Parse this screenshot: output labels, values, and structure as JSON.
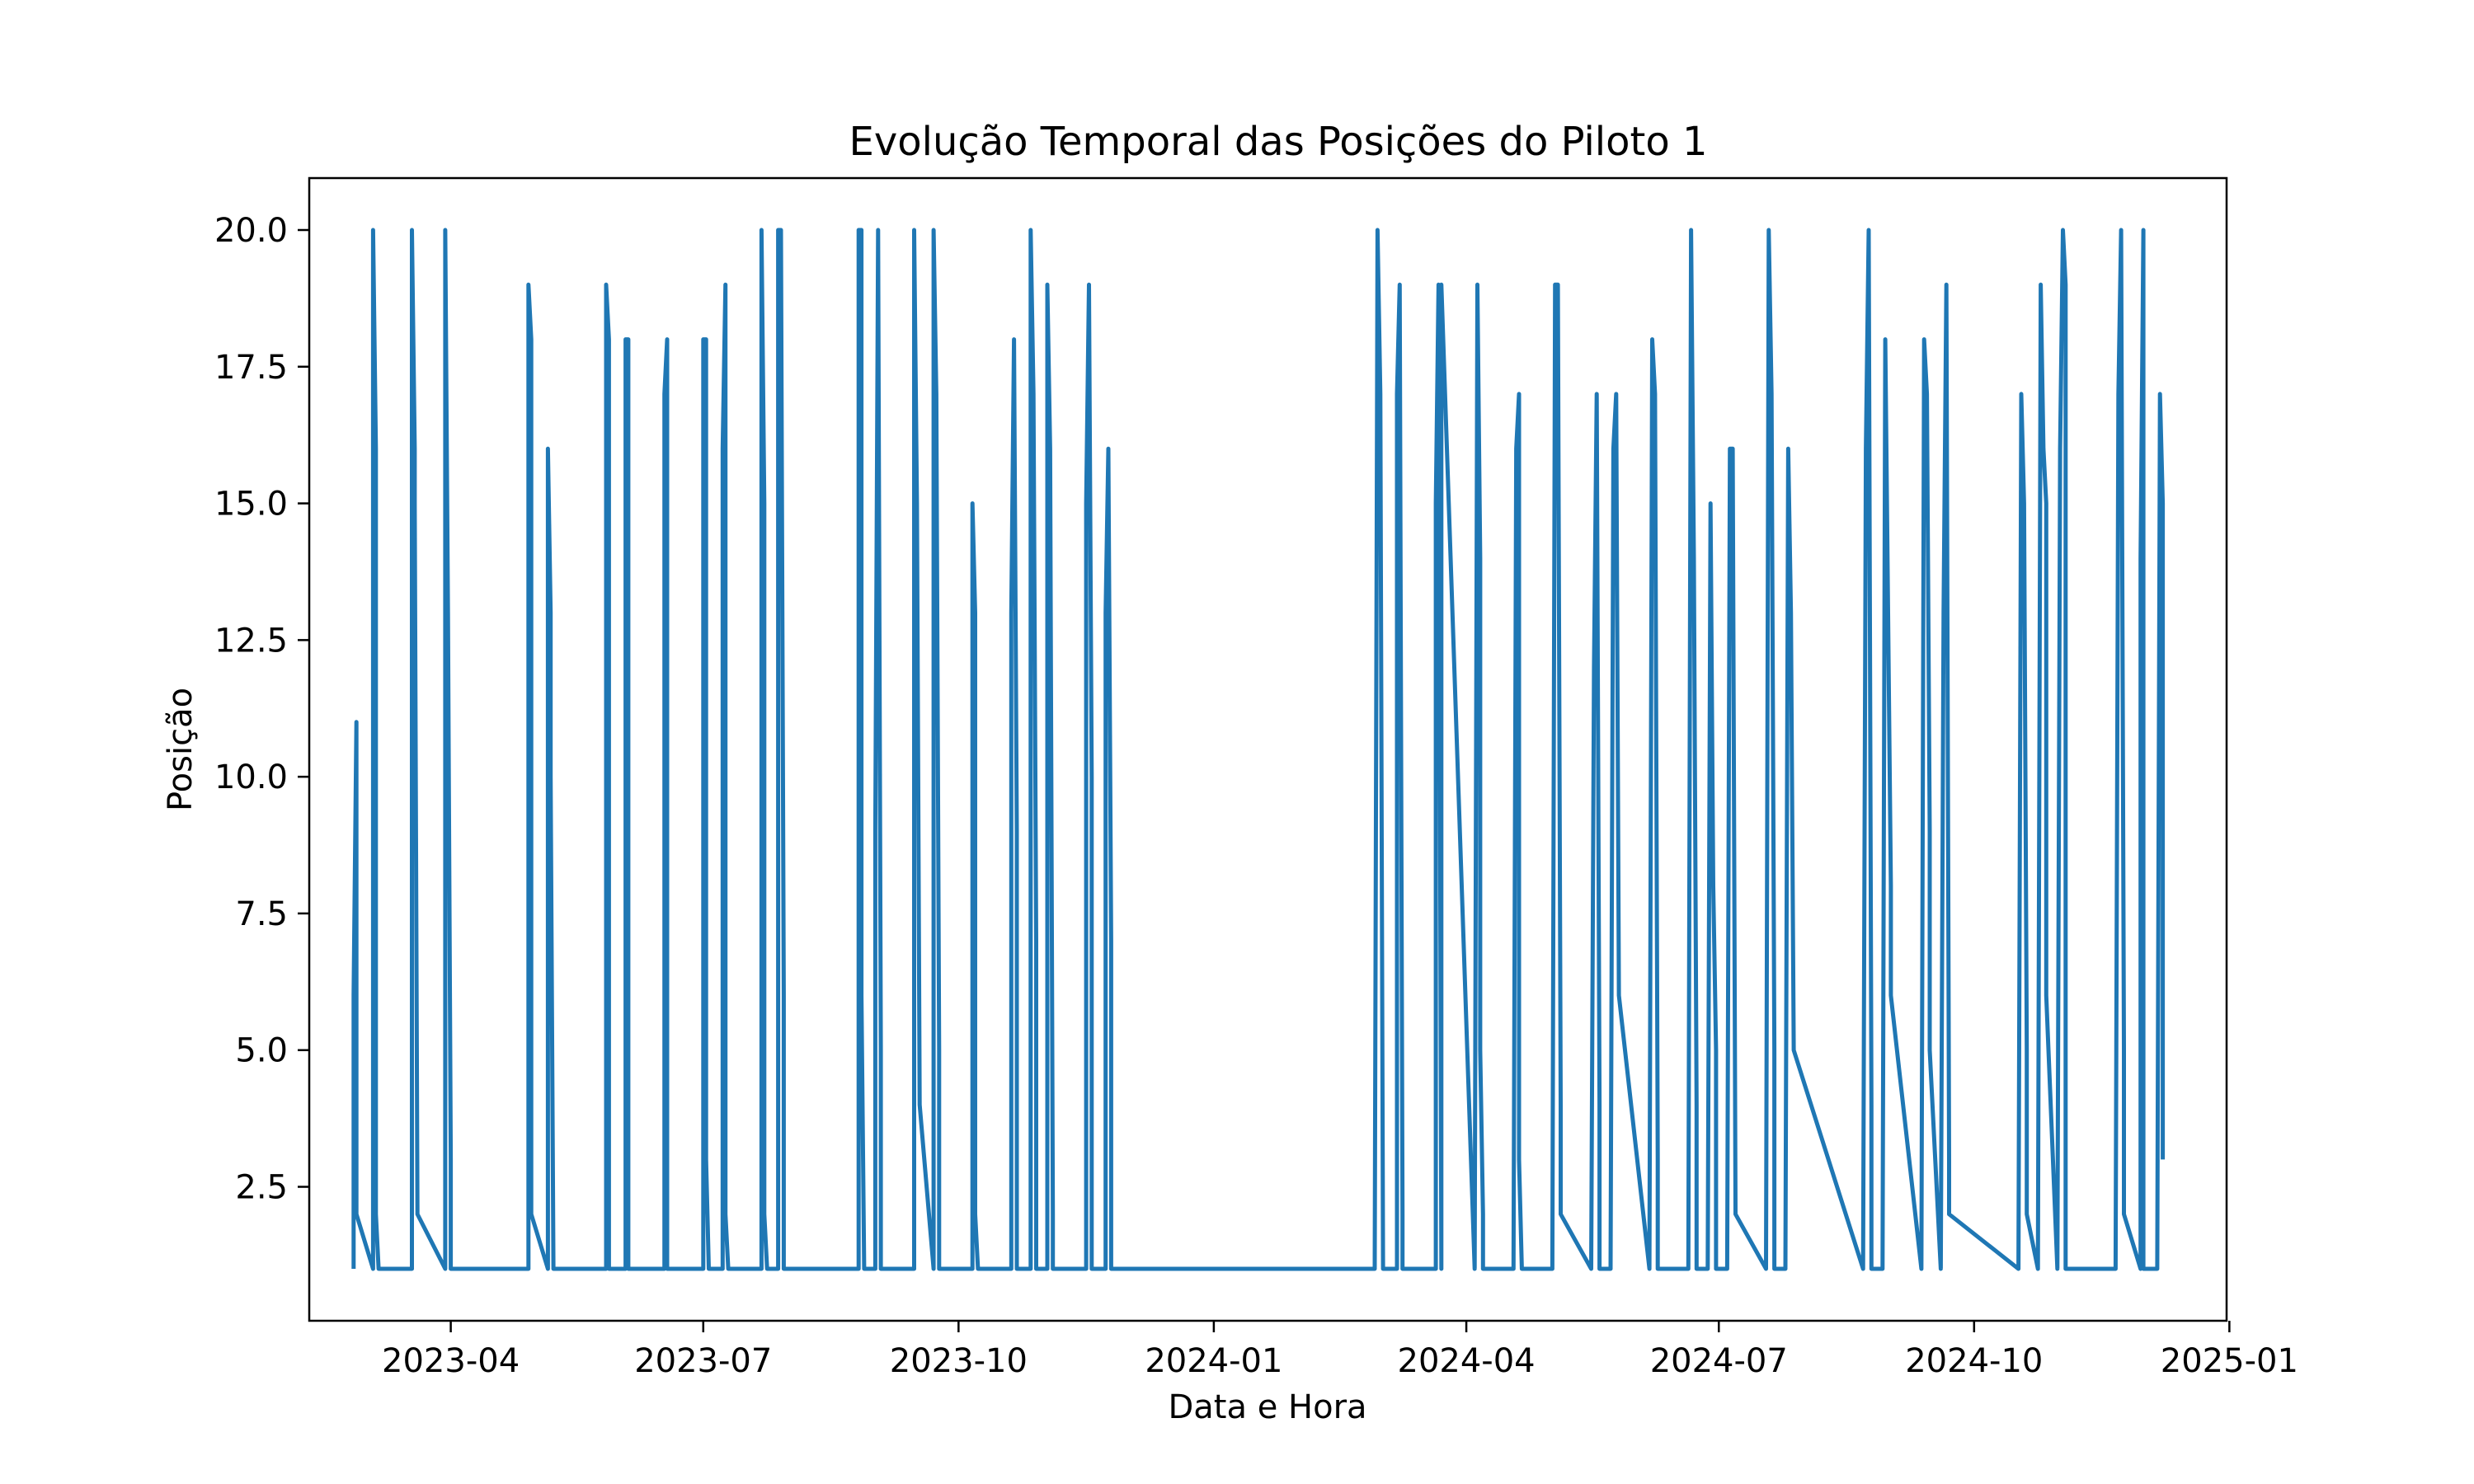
{
  "colors": {
    "line": "#1f77b4",
    "axes": "#000000",
    "background": "#ffffff"
  },
  "chart_data": {
    "type": "line",
    "title": "Evolução Temporal das Posições do Piloto 1",
    "xlabel": "Data e Hora",
    "ylabel": "Posição",
    "x_ticks": [
      "2023-04",
      "2023-07",
      "2023-10",
      "2024-01",
      "2024-04",
      "2024-07",
      "2024-10",
      "2025-01"
    ],
    "y_ticks": [
      "2.5",
      "5.0",
      "7.5",
      "10.0",
      "12.5",
      "15.0",
      "17.5",
      "20.0"
    ],
    "xlim": [
      "2023-02-09",
      "2024-12-31"
    ],
    "ylim": [
      0.05,
      20.95
    ],
    "grid": false,
    "legend": "none",
    "series": [
      {
        "points": [
          [
            "2023-02-25",
            1
          ],
          [
            "2023-02-25",
            6
          ],
          [
            "2023-02-26",
            11
          ],
          [
            "2023-02-26",
            2
          ],
          [
            "2023-03-04",
            1
          ],
          [
            "2023-03-04",
            20
          ],
          [
            "2023-03-05",
            16
          ],
          [
            "2023-03-05",
            2
          ],
          [
            "2023-03-06",
            1
          ],
          [
            "2023-03-18",
            1
          ],
          [
            "2023-03-18",
            20
          ],
          [
            "2023-03-19",
            16
          ],
          [
            "2023-03-19",
            15
          ],
          [
            "2023-03-20",
            2
          ],
          [
            "2023-03-30",
            1
          ],
          [
            "2023-03-30",
            20
          ],
          [
            "2023-03-31",
            13
          ],
          [
            "2023-04-01",
            3
          ],
          [
            "2023-04-01",
            1
          ],
          [
            "2023-04-29",
            1
          ],
          [
            "2023-04-29",
            19
          ],
          [
            "2023-04-30",
            18
          ],
          [
            "2023-04-30",
            7
          ],
          [
            "2023-04-30",
            2
          ],
          [
            "2023-05-06",
            1
          ],
          [
            "2023-05-06",
            16
          ],
          [
            "2023-05-07",
            13
          ],
          [
            "2023-05-07",
            10
          ],
          [
            "2023-05-08",
            1
          ],
          [
            "2023-05-27",
            1
          ],
          [
            "2023-05-27",
            19
          ],
          [
            "2023-05-28",
            18
          ],
          [
            "2023-05-28",
            5
          ],
          [
            "2023-05-28",
            1
          ],
          [
            "2023-06-03",
            1
          ],
          [
            "2023-06-03",
            18
          ],
          [
            "2023-06-04",
            18
          ],
          [
            "2023-06-04",
            1
          ],
          [
            "2023-06-17",
            1
          ],
          [
            "2023-06-17",
            17
          ],
          [
            "2023-06-18",
            18
          ],
          [
            "2023-06-18",
            1
          ],
          [
            "2023-07-01",
            1
          ],
          [
            "2023-07-01",
            18
          ],
          [
            "2023-07-02",
            18
          ],
          [
            "2023-07-02",
            3
          ],
          [
            "2023-07-03",
            1
          ],
          [
            "2023-07-08",
            1
          ],
          [
            "2023-07-08",
            16
          ],
          [
            "2023-07-09",
            19
          ],
          [
            "2023-07-09",
            2
          ],
          [
            "2023-07-10",
            1
          ],
          [
            "2023-07-22",
            1
          ],
          [
            "2023-07-22",
            20
          ],
          [
            "2023-07-23",
            15
          ],
          [
            "2023-07-23",
            2
          ],
          [
            "2023-07-24",
            1
          ],
          [
            "2023-07-28",
            1
          ],
          [
            "2023-07-28",
            20
          ],
          [
            "2023-07-29",
            20
          ],
          [
            "2023-07-30",
            6
          ],
          [
            "2023-07-30",
            1
          ],
          [
            "2023-08-26",
            1
          ],
          [
            "2023-08-26",
            20
          ],
          [
            "2023-08-27",
            20
          ],
          [
            "2023-08-27",
            6
          ],
          [
            "2023-08-28",
            1
          ],
          [
            "2023-09-01",
            1
          ],
          [
            "2023-09-01",
            9
          ],
          [
            "2023-09-02",
            20
          ],
          [
            "2023-09-03",
            5
          ],
          [
            "2023-09-03",
            1
          ],
          [
            "2023-09-15",
            1
          ],
          [
            "2023-09-15",
            20
          ],
          [
            "2023-09-16",
            15
          ],
          [
            "2023-09-17",
            4
          ],
          [
            "2023-09-22",
            1
          ],
          [
            "2023-09-22",
            20
          ],
          [
            "2023-09-23",
            17
          ],
          [
            "2023-09-24",
            5
          ],
          [
            "2023-09-24",
            1
          ],
          [
            "2023-10-06",
            1
          ],
          [
            "2023-10-06",
            15
          ],
          [
            "2023-10-07",
            13
          ],
          [
            "2023-10-07",
            2
          ],
          [
            "2023-10-08",
            1
          ],
          [
            "2023-10-20",
            1
          ],
          [
            "2023-10-20",
            13
          ],
          [
            "2023-10-21",
            18
          ],
          [
            "2023-10-22",
            9
          ],
          [
            "2023-10-22",
            1
          ],
          [
            "2023-10-27",
            1
          ],
          [
            "2023-10-27",
            20
          ],
          [
            "2023-10-28",
            17
          ],
          [
            "2023-10-29",
            7
          ],
          [
            "2023-10-29",
            1
          ],
          [
            "2023-11-02",
            1
          ],
          [
            "2023-11-02",
            19
          ],
          [
            "2023-11-03",
            16
          ],
          [
            "2023-11-04",
            2
          ],
          [
            "2023-11-04",
            1
          ],
          [
            "2023-11-16",
            1
          ],
          [
            "2023-11-16",
            15
          ],
          [
            "2023-11-17",
            19
          ],
          [
            "2023-11-18",
            10
          ],
          [
            "2023-11-18",
            1
          ],
          [
            "2023-11-23",
            1
          ],
          [
            "2023-11-23",
            13
          ],
          [
            "2023-11-24",
            16
          ],
          [
            "2023-11-25",
            7
          ],
          [
            "2023-11-25",
            1
          ],
          [
            "2024-02-28",
            1
          ],
          [
            "2024-02-29",
            20
          ],
          [
            "2024-03-01",
            17
          ],
          [
            "2024-03-02",
            1
          ],
          [
            "2024-03-07",
            1
          ],
          [
            "2024-03-07",
            17
          ],
          [
            "2024-03-08",
            19
          ],
          [
            "2024-03-09",
            2
          ],
          [
            "2024-03-09",
            1
          ],
          [
            "2024-03-21",
            1
          ],
          [
            "2024-03-21",
            15
          ],
          [
            "2024-03-22",
            19
          ],
          [
            "2024-03-23",
            1
          ],
          [
            "2024-03-23",
            19
          ],
          [
            "2024-04-04",
            1
          ],
          [
            "2024-04-05",
            19
          ],
          [
            "2024-04-06",
            14
          ],
          [
            "2024-04-06",
            5
          ],
          [
            "2024-04-07",
            2
          ],
          [
            "2024-04-07",
            1
          ],
          [
            "2024-04-18",
            1
          ],
          [
            "2024-04-19",
            16
          ],
          [
            "2024-04-20",
            17
          ],
          [
            "2024-04-20",
            3
          ],
          [
            "2024-04-21",
            1
          ],
          [
            "2024-05-02",
            1
          ],
          [
            "2024-05-03",
            19
          ],
          [
            "2024-05-04",
            19
          ],
          [
            "2024-05-05",
            4
          ],
          [
            "2024-05-05",
            2
          ],
          [
            "2024-05-16",
            1
          ],
          [
            "2024-05-17",
            12
          ],
          [
            "2024-05-18",
            17
          ],
          [
            "2024-05-19",
            4
          ],
          [
            "2024-05-19",
            1
          ],
          [
            "2024-05-23",
            1
          ],
          [
            "2024-05-24",
            16
          ],
          [
            "2024-05-25",
            17
          ],
          [
            "2024-05-26",
            6
          ],
          [
            "2024-06-06",
            1
          ],
          [
            "2024-06-07",
            18
          ],
          [
            "2024-06-08",
            17
          ],
          [
            "2024-06-09",
            3
          ],
          [
            "2024-06-09",
            1
          ],
          [
            "2024-06-20",
            1
          ],
          [
            "2024-06-21",
            20
          ],
          [
            "2024-06-22",
            14
          ],
          [
            "2024-06-23",
            4
          ],
          [
            "2024-06-23",
            1
          ],
          [
            "2024-06-27",
            1
          ],
          [
            "2024-06-28",
            15
          ],
          [
            "2024-06-29",
            8
          ],
          [
            "2024-06-30",
            5
          ],
          [
            "2024-06-30",
            1
          ],
          [
            "2024-07-04",
            1
          ],
          [
            "2024-07-05",
            16
          ],
          [
            "2024-07-06",
            16
          ],
          [
            "2024-07-07",
            2
          ],
          [
            "2024-07-18",
            1
          ],
          [
            "2024-07-19",
            20
          ],
          [
            "2024-07-20",
            17
          ],
          [
            "2024-07-21",
            5
          ],
          [
            "2024-07-21",
            1
          ],
          [
            "2024-07-25",
            1
          ],
          [
            "2024-07-26",
            16
          ],
          [
            "2024-07-27",
            13
          ],
          [
            "2024-07-28",
            5
          ],
          [
            "2024-08-22",
            1
          ],
          [
            "2024-08-23",
            16
          ],
          [
            "2024-08-24",
            20
          ],
          [
            "2024-08-25",
            4
          ],
          [
            "2024-08-25",
            1
          ],
          [
            "2024-08-29",
            1
          ],
          [
            "2024-08-30",
            18
          ],
          [
            "2024-08-31",
            13
          ],
          [
            "2024-09-01",
            8
          ],
          [
            "2024-09-01",
            6
          ],
          [
            "2024-09-12",
            1
          ],
          [
            "2024-09-13",
            18
          ],
          [
            "2024-09-14",
            17
          ],
          [
            "2024-09-15",
            9
          ],
          [
            "2024-09-15",
            5
          ],
          [
            "2024-09-19",
            1
          ],
          [
            "2024-09-20",
            13
          ],
          [
            "2024-09-21",
            19
          ],
          [
            "2024-09-22",
            3
          ],
          [
            "2024-09-22",
            2
          ],
          [
            "2024-10-17",
            1
          ],
          [
            "2024-10-18",
            17
          ],
          [
            "2024-10-19",
            15
          ],
          [
            "2024-10-20",
            5
          ],
          [
            "2024-10-20",
            2
          ],
          [
            "2024-10-24",
            1
          ],
          [
            "2024-10-25",
            19
          ],
          [
            "2024-10-26",
            16
          ],
          [
            "2024-10-27",
            15
          ],
          [
            "2024-10-27",
            6
          ],
          [
            "2024-10-31",
            1
          ],
          [
            "2024-11-01",
            16
          ],
          [
            "2024-11-02",
            20
          ],
          [
            "2024-11-03",
            19
          ],
          [
            "2024-11-03",
            1
          ],
          [
            "2024-11-21",
            1
          ],
          [
            "2024-11-22",
            17
          ],
          [
            "2024-11-23",
            20
          ],
          [
            "2024-11-24",
            5
          ],
          [
            "2024-11-24",
            2
          ],
          [
            "2024-11-30",
            1
          ],
          [
            "2024-11-30",
            14
          ],
          [
            "2024-12-01",
            20
          ],
          [
            "2024-12-01",
            2
          ],
          [
            "2024-12-01",
            1
          ],
          [
            "2024-12-06",
            1
          ],
          [
            "2024-12-07",
            17
          ],
          [
            "2024-12-07",
            17
          ],
          [
            "2024-12-08",
            15
          ],
          [
            "2024-12-08",
            3
          ]
        ]
      }
    ]
  }
}
